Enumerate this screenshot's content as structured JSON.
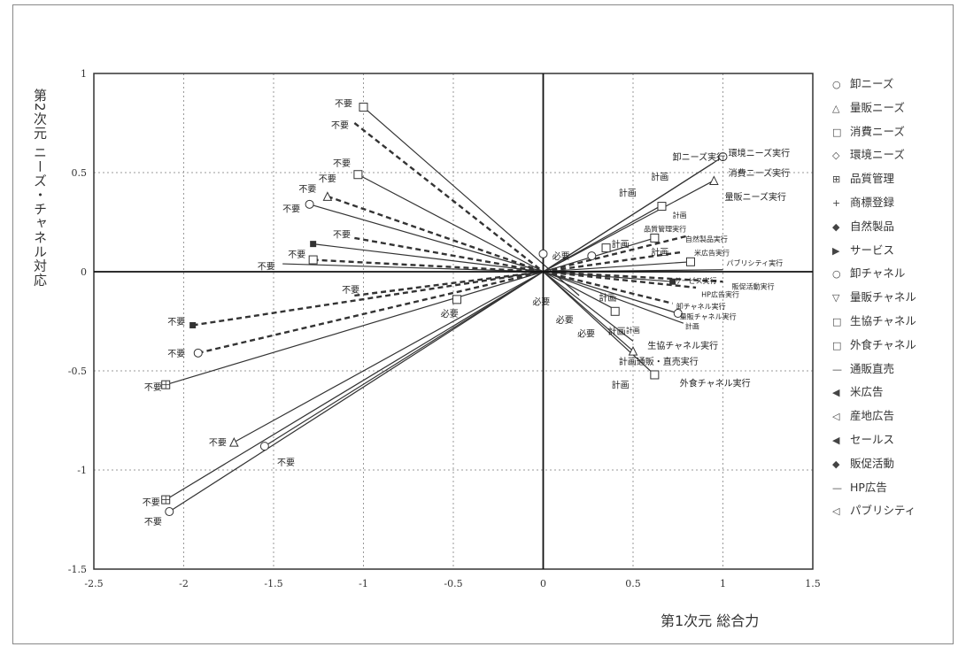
{
  "chart_data": {
    "type": "scatter",
    "xlabel": "第1次元 総合力",
    "ylabel": "第2次元 ニーズ・チャネル対応",
    "xlim": [
      -2.5,
      1.5
    ],
    "ylim": [
      -1.5,
      1.0
    ],
    "x_ticks": [
      "-2.5",
      "-2",
      "-1.5",
      "-1",
      "-0.5",
      "0",
      "0.5",
      "1",
      "1.5"
    ],
    "y_ticks": [
      "1",
      "0.5",
      "0",
      "-0.5",
      "-1",
      "-1.5"
    ],
    "grid": true,
    "legend": {
      "position": "right",
      "entries": [
        {
          "marker": "○",
          "label": "卸ニーズ"
        },
        {
          "marker": "△",
          "label": "量販ニーズ"
        },
        {
          "marker": "□",
          "label": "消費ニーズ"
        },
        {
          "marker": "◇",
          "label": "環境ニーズ"
        },
        {
          "marker": "⊞",
          "label": "品質管理"
        },
        {
          "marker": "+",
          "label": "商標登録"
        },
        {
          "marker": "◆",
          "label": "自然製品"
        },
        {
          "marker": "▶",
          "label": "サービス"
        },
        {
          "marker": "○",
          "label": "卸チャネル"
        },
        {
          "marker": "▽",
          "label": "量販チャネル"
        },
        {
          "marker": "□",
          "label": "生協チャネル"
        },
        {
          "marker": "□",
          "label": "外食チャネル"
        },
        {
          "marker": "—",
          "label": "通販直売"
        },
        {
          "marker": "◀",
          "label": "米広告"
        },
        {
          "marker": "◁",
          "label": "産地広告"
        },
        {
          "marker": "◀",
          "label": "セールス"
        },
        {
          "marker": "◆",
          "label": "販促活動"
        },
        {
          "marker": "—",
          "label": "HP広告"
        },
        {
          "marker": "◁",
          "label": "パブリシティ"
        }
      ]
    },
    "vectors": [
      {
        "x1": -1.0,
        "y1": 0.83,
        "x2": 0.2,
        "y2": -0.12,
        "dashed": false
      },
      {
        "x1": -1.05,
        "y1": 0.75,
        "x2": 0.0,
        "y2": 0.0,
        "dashed": true
      },
      {
        "x1": -1.03,
        "y1": 0.49,
        "x2": 0.0,
        "y2": 0.0,
        "dashed": false
      },
      {
        "x1": -1.2,
        "y1": 0.38,
        "x2": 0.0,
        "y2": 0.0,
        "dashed": true
      },
      {
        "x1": -1.3,
        "y1": 0.34,
        "x2": 0.0,
        "y2": 0.0,
        "dashed": false
      },
      {
        "x1": -1.05,
        "y1": 0.17,
        "x2": 0.0,
        "y2": 0.0,
        "dashed": true
      },
      {
        "x1": -1.28,
        "y1": 0.14,
        "x2": 0.0,
        "y2": 0.0,
        "dashed": false
      },
      {
        "x1": -1.28,
        "y1": 0.06,
        "x2": 0.0,
        "y2": 0.0,
        "dashed": true
      },
      {
        "x1": -1.45,
        "y1": 0.04,
        "x2": 0.0,
        "y2": 0.0,
        "dashed": false
      },
      {
        "x1": -1.05,
        "y1": -0.12,
        "x2": 0.0,
        "y2": 0.0,
        "dashed": true
      },
      {
        "x1": -1.95,
        "y1": -0.27,
        "x2": 0.0,
        "y2": 0.0,
        "dashed": true
      },
      {
        "x1": -1.92,
        "y1": -0.41,
        "x2": 0.0,
        "y2": 0.0,
        "dashed": true
      },
      {
        "x1": -2.1,
        "y1": -0.57,
        "x2": 0.0,
        "y2": 0.0,
        "dashed": false
      },
      {
        "x1": -1.72,
        "y1": -0.86,
        "x2": 0.0,
        "y2": 0.0,
        "dashed": false
      },
      {
        "x1": -1.55,
        "y1": -0.88,
        "x2": 0.0,
        "y2": 0.0,
        "dashed": false
      },
      {
        "x1": -2.1,
        "y1": -1.15,
        "x2": 0.0,
        "y2": 0.0,
        "dashed": false
      },
      {
        "x1": -2.08,
        "y1": -1.21,
        "x2": 0.0,
        "y2": 0.0,
        "dashed": false
      },
      {
        "x1": 0.0,
        "y1": 0.0,
        "x2": 1.0,
        "y2": 0.58,
        "dashed": false
      },
      {
        "x1": 0.0,
        "y1": 0.0,
        "x2": 0.95,
        "y2": 0.55,
        "dashed": false
      },
      {
        "x1": 0.0,
        "y1": 0.0,
        "x2": 0.95,
        "y2": 0.46,
        "dashed": false
      },
      {
        "x1": 0.0,
        "y1": 0.0,
        "x2": 0.65,
        "y2": 0.33,
        "dashed": false
      },
      {
        "x1": 0.0,
        "y1": 0.0,
        "x2": 0.8,
        "y2": 0.18,
        "dashed": true
      },
      {
        "x1": 0.0,
        "y1": 0.0,
        "x2": 0.62,
        "y2": 0.17,
        "dashed": false
      },
      {
        "x1": 0.0,
        "y1": 0.0,
        "x2": 0.78,
        "y2": 0.1,
        "dashed": true
      },
      {
        "x1": 0.0,
        "y1": 0.0,
        "x2": 0.82,
        "y2": 0.05,
        "dashed": false
      },
      {
        "x1": 0.0,
        "y1": 0.0,
        "x2": 1.0,
        "y2": 0.01,
        "dashed": false
      },
      {
        "x1": 0.0,
        "y1": 0.0,
        "x2": 0.72,
        "y2": -0.05,
        "dashed": false
      },
      {
        "x1": 0.0,
        "y1": 0.0,
        "x2": 1.0,
        "y2": -0.05,
        "dashed": true
      },
      {
        "x1": 0.0,
        "y1": 0.0,
        "x2": 0.85,
        "y2": -0.08,
        "dashed": true
      },
      {
        "x1": 0.0,
        "y1": 0.0,
        "x2": 0.72,
        "y2": -0.16,
        "dashed": true
      },
      {
        "x1": 0.0,
        "y1": 0.0,
        "x2": 0.75,
        "y2": -0.21,
        "dashed": false
      },
      {
        "x1": 0.0,
        "y1": 0.0,
        "x2": 0.78,
        "y2": -0.26,
        "dashed": false
      },
      {
        "x1": 0.0,
        "y1": 0.0,
        "x2": 0.5,
        "y2": -0.35,
        "dashed": false
      },
      {
        "x1": 0.0,
        "y1": 0.0,
        "x2": 0.5,
        "y2": -0.4,
        "dashed": false
      },
      {
        "x1": 0.0,
        "y1": 0.0,
        "x2": 0.62,
        "y2": -0.52,
        "dashed": false
      },
      {
        "x1": 0.0,
        "y1": 0.0,
        "x2": 0.42,
        "y2": -0.2,
        "dashed": false
      }
    ],
    "point_labels": [
      {
        "x": -1.16,
        "y": 0.85,
        "text": "不要",
        "small": false
      },
      {
        "x": -1.18,
        "y": 0.74,
        "text": "不要",
        "small": false
      },
      {
        "x": -1.17,
        "y": 0.55,
        "text": "不要",
        "small": false
      },
      {
        "x": -1.25,
        "y": 0.47,
        "text": "不要",
        "small": false
      },
      {
        "x": -1.36,
        "y": 0.42,
        "text": "不要",
        "small": false
      },
      {
        "x": -1.45,
        "y": 0.32,
        "text": "不要",
        "small": false
      },
      {
        "x": -1.17,
        "y": 0.19,
        "text": "不要",
        "small": false
      },
      {
        "x": -1.42,
        "y": 0.09,
        "text": "不要",
        "small": false
      },
      {
        "x": -1.59,
        "y": 0.03,
        "text": "不要",
        "small": false
      },
      {
        "x": -1.12,
        "y": -0.09,
        "text": "不要",
        "small": false
      },
      {
        "x": -2.09,
        "y": -0.25,
        "text": "不要",
        "small": false
      },
      {
        "x": -2.09,
        "y": -0.41,
        "text": "不要",
        "small": false
      },
      {
        "x": -2.22,
        "y": -0.58,
        "text": "不要",
        "small": false
      },
      {
        "x": -1.86,
        "y": -0.86,
        "text": "不要",
        "small": false
      },
      {
        "x": -1.48,
        "y": -0.96,
        "text": "不要",
        "small": false
      },
      {
        "x": -2.23,
        "y": -1.16,
        "text": "不要",
        "small": false
      },
      {
        "x": -2.22,
        "y": -1.26,
        "text": "不要",
        "small": false
      },
      {
        "x": -0.57,
        "y": -0.21,
        "text": "必要",
        "small": false
      },
      {
        "x": -0.06,
        "y": -0.15,
        "text": "必要",
        "small": false
      },
      {
        "x": 0.05,
        "y": 0.08,
        "text": "必要",
        "small": false
      },
      {
        "x": 0.07,
        "y": -0.24,
        "text": "必要",
        "small": false
      },
      {
        "x": 0.19,
        "y": -0.31,
        "text": "必要",
        "small": false
      },
      {
        "x": 0.36,
        "y": -0.3,
        "text": "計画",
        "small": false
      },
      {
        "x": 0.31,
        "y": -0.13,
        "text": "計画",
        "small": false
      },
      {
        "x": 0.38,
        "y": 0.14,
        "text": "計画",
        "small": false
      },
      {
        "x": 0.42,
        "y": 0.4,
        "text": "計画",
        "small": false
      },
      {
        "x": 0.6,
        "y": 0.48,
        "text": "計画",
        "small": false
      },
      {
        "x": 0.6,
        "y": 0.1,
        "text": "計画",
        "small": false
      },
      {
        "x": 0.38,
        "y": -0.57,
        "text": "計画",
        "small": false
      },
      {
        "x": 0.72,
        "y": 0.58,
        "text": "卸ニーズ実行",
        "small": false
      },
      {
        "x": 1.03,
        "y": 0.6,
        "text": "環境ニーズ実行",
        "small": false
      },
      {
        "x": 1.03,
        "y": 0.5,
        "text": "消費ニーズ実行",
        "small": false
      },
      {
        "x": 1.01,
        "y": 0.38,
        "text": "量販ニーズ実行",
        "small": false
      },
      {
        "x": 0.58,
        "y": -0.37,
        "text": "生協チャネル実行",
        "small": false
      },
      {
        "x": 0.42,
        "y": -0.45,
        "text": "計画通販・直売実行",
        "small": false
      },
      {
        "x": 0.76,
        "y": -0.56,
        "text": "外食チャネル実行",
        "small": false
      },
      {
        "x": 0.72,
        "y": 0.29,
        "text": "計画",
        "small": true
      },
      {
        "x": 0.56,
        "y": 0.22,
        "text": "品質管理実行",
        "small": true
      },
      {
        "x": 0.79,
        "y": 0.17,
        "text": "自然製品実行",
        "small": true
      },
      {
        "x": 0.84,
        "y": 0.1,
        "text": "米広告実行",
        "small": true
      },
      {
        "x": 1.02,
        "y": 0.05,
        "text": "パブリシティ実行",
        "small": true
      },
      {
        "x": 0.73,
        "y": -0.04,
        "text": "サービス実行",
        "small": true
      },
      {
        "x": 1.05,
        "y": -0.07,
        "text": "販促活動実行",
        "small": true
      },
      {
        "x": 0.88,
        "y": -0.11,
        "text": "HP広告実行",
        "small": true
      },
      {
        "x": 0.74,
        "y": -0.17,
        "text": "卸チャネル実行",
        "small": true
      },
      {
        "x": 0.76,
        "y": -0.22,
        "text": "量販チャネル実行",
        "small": true
      },
      {
        "x": 0.79,
        "y": -0.27,
        "text": "計画",
        "small": true
      },
      {
        "x": 0.46,
        "y": -0.29,
        "text": "計画",
        "small": true
      }
    ],
    "markers": [
      {
        "x": -1.0,
        "y": 0.83,
        "shape": "square"
      },
      {
        "x": -1.03,
        "y": 0.49,
        "shape": "square"
      },
      {
        "x": -1.2,
        "y": 0.38,
        "shape": "tri"
      },
      {
        "x": -1.3,
        "y": 0.34,
        "shape": "circle"
      },
      {
        "x": -1.28,
        "y": 0.14,
        "shape": "filled-square"
      },
      {
        "x": -1.28,
        "y": 0.06,
        "shape": "square"
      },
      {
        "x": -1.95,
        "y": -0.27,
        "shape": "filled-square"
      },
      {
        "x": -1.92,
        "y": -0.41,
        "shape": "circle"
      },
      {
        "x": -2.1,
        "y": -0.57,
        "shape": "square-grid"
      },
      {
        "x": -1.72,
        "y": -0.86,
        "shape": "tri"
      },
      {
        "x": -1.55,
        "y": -0.88,
        "shape": "circle"
      },
      {
        "x": -2.1,
        "y": -1.15,
        "shape": "square-grid"
      },
      {
        "x": -2.08,
        "y": -1.21,
        "shape": "circle"
      },
      {
        "x": -0.48,
        "y": -0.14,
        "shape": "square"
      },
      {
        "x": -0.0,
        "y": 0.09,
        "shape": "circle"
      },
      {
        "x": 0.4,
        "y": -0.2,
        "shape": "square"
      },
      {
        "x": 0.62,
        "y": -0.52,
        "shape": "square"
      },
      {
        "x": 0.66,
        "y": 0.33,
        "shape": "square"
      },
      {
        "x": 0.62,
        "y": 0.17,
        "shape": "square"
      },
      {
        "x": 0.35,
        "y": 0.12,
        "shape": "square"
      },
      {
        "x": 0.27,
        "y": 0.08,
        "shape": "circle"
      },
      {
        "x": 1.0,
        "y": 0.58,
        "shape": "circle"
      },
      {
        "x": 0.95,
        "y": 0.46,
        "shape": "tri"
      },
      {
        "x": 0.75,
        "y": -0.21,
        "shape": "circle"
      },
      {
        "x": 0.5,
        "y": -0.4,
        "shape": "tri"
      },
      {
        "x": 0.82,
        "y": 0.05,
        "shape": "square"
      },
      {
        "x": 0.72,
        "y": -0.05,
        "shape": "filled-square"
      }
    ]
  }
}
